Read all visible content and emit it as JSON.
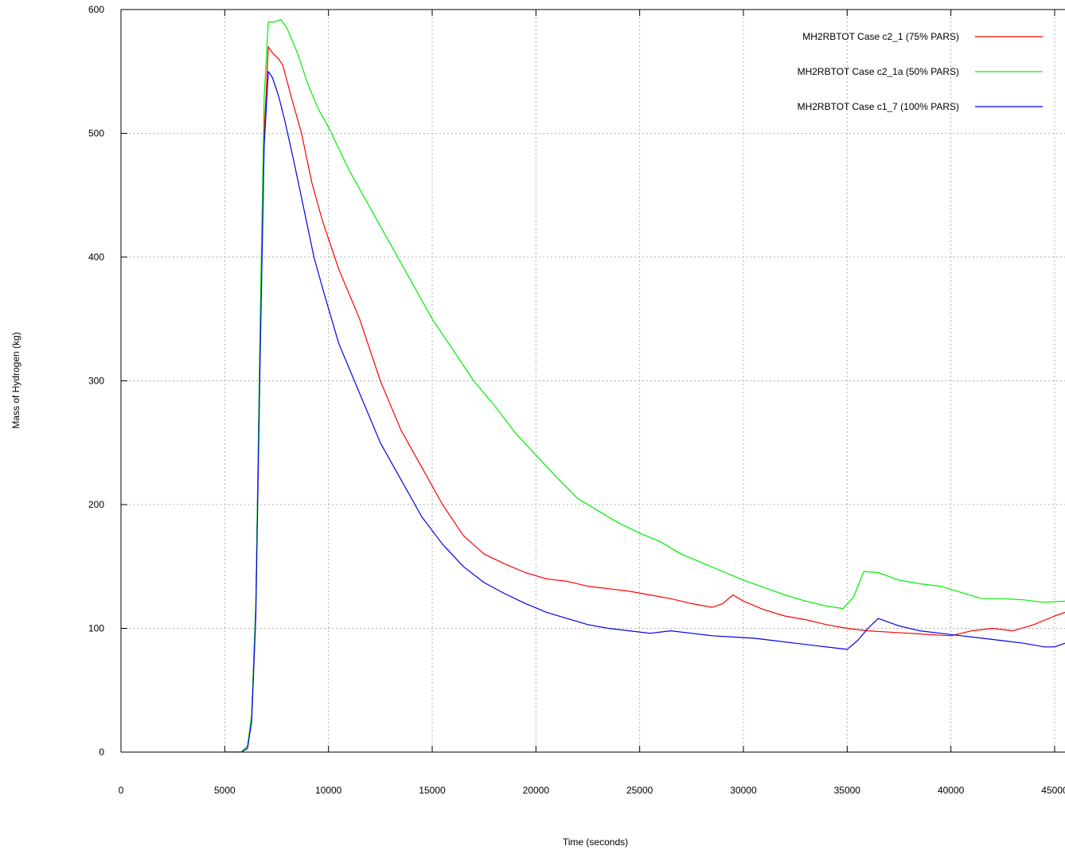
{
  "chart_data": {
    "type": "line",
    "title": "",
    "xlabel": "Time (seconds)",
    "ylabel": "Mass of Hydrogen (kg)",
    "xlim": [
      0,
      45500
    ],
    "ylim": [
      0,
      600
    ],
    "x_ticks": [
      0,
      5000,
      10000,
      15000,
      20000,
      25000,
      30000,
      35000,
      40000,
      45000
    ],
    "y_ticks": [
      0,
      100,
      200,
      300,
      400,
      500,
      600
    ],
    "x_tick_labels": [
      "0",
      "5000",
      "10000",
      "15000",
      "20000",
      "25000",
      "30000",
      "35000",
      "40000",
      "45000"
    ],
    "y_tick_labels": [
      "0",
      "100",
      "200",
      "300",
      "400",
      "500",
      "600"
    ],
    "grid": true,
    "legend_position": "top-right",
    "series": [
      {
        "name": "MH2RBTOT Case c2_1 (75% PARS)",
        "color": "#ff0000",
        "x": [
          5000,
          5800,
          6100,
          6300,
          6500,
          6700,
          6900,
          7100,
          7300,
          7600,
          7800,
          8200,
          8700,
          9200,
          9700,
          10500,
          11500,
          12500,
          13500,
          14500,
          15500,
          16500,
          17500,
          18500,
          19500,
          20500,
          21500,
          22500,
          23500,
          24500,
          25500,
          26500,
          27500,
          28500,
          29000,
          29500,
          30000,
          31000,
          32000,
          33000,
          34000,
          35000,
          36000,
          37000,
          38000,
          39000,
          40000,
          41000,
          42000,
          43000,
          44000,
          45000,
          45500
        ],
        "y": [
          0,
          0,
          5,
          30,
          120,
          330,
          500,
          570,
          565,
          560,
          555,
          530,
          500,
          460,
          430,
          390,
          350,
          300,
          260,
          230,
          200,
          175,
          160,
          152,
          145,
          140,
          138,
          134,
          132,
          130,
          127,
          124,
          120,
          117,
          120,
          127,
          122,
          115,
          110,
          107,
          103,
          100,
          98,
          97,
          96,
          95,
          94,
          98,
          100,
          98,
          103,
          110,
          113
        ]
      },
      {
        "name": "MH2RBTOT Case c2_1a (50% PARS)",
        "color": "#00ee00",
        "x": [
          5000,
          5800,
          6100,
          6300,
          6500,
          6700,
          6900,
          7100,
          7400,
          7700,
          8000,
          8500,
          9000,
          9500,
          10000,
          11000,
          12000,
          13000,
          14000,
          15000,
          16000,
          17000,
          18000,
          19000,
          20000,
          21000,
          22000,
          23000,
          24000,
          25000,
          26000,
          27000,
          28000,
          29000,
          30000,
          31000,
          32000,
          33000,
          34000,
          34800,
          35300,
          35800,
          36500,
          37500,
          38500,
          39500,
          40500,
          41500,
          42500,
          43500,
          44500,
          45500
        ],
        "y": [
          0,
          0,
          5,
          30,
          120,
          340,
          530,
          590,
          590,
          592,
          585,
          565,
          540,
          520,
          505,
          470,
          440,
          410,
          380,
          350,
          325,
          300,
          280,
          258,
          240,
          222,
          205,
          195,
          185,
          177,
          170,
          160,
          153,
          146,
          139,
          133,
          127,
          122,
          118,
          116,
          125,
          146,
          145,
          139,
          136,
          134,
          129,
          124,
          124,
          123,
          121,
          122
        ]
      },
      {
        "name": "MH2RBTOT Case c1_7 (100% PARS)",
        "color": "#0000ee",
        "x": [
          5000,
          5800,
          6100,
          6300,
          6500,
          6700,
          6900,
          7100,
          7300,
          7600,
          7900,
          8300,
          8800,
          9300,
          9800,
          10500,
          11500,
          12500,
          13500,
          14500,
          15500,
          16500,
          17500,
          18500,
          19500,
          20500,
          21500,
          22500,
          23500,
          24500,
          25500,
          26500,
          27500,
          28500,
          29500,
          30500,
          31500,
          32500,
          33500,
          34500,
          35000,
          35500,
          36000,
          36500,
          37500,
          38500,
          39500,
          40500,
          41500,
          42500,
          43500,
          44500,
          45000,
          45500
        ],
        "y": [
          0,
          0,
          3,
          25,
          110,
          310,
          490,
          550,
          545,
          530,
          510,
          480,
          440,
          400,
          370,
          330,
          290,
          250,
          220,
          190,
          168,
          150,
          137,
          128,
          120,
          113,
          108,
          103,
          100,
          98,
          96,
          98,
          96,
          94,
          93,
          92,
          90,
          88,
          86,
          84,
          83,
          90,
          100,
          108,
          102,
          98,
          96,
          94,
          92,
          90,
          88,
          85,
          85,
          88
        ]
      }
    ]
  }
}
